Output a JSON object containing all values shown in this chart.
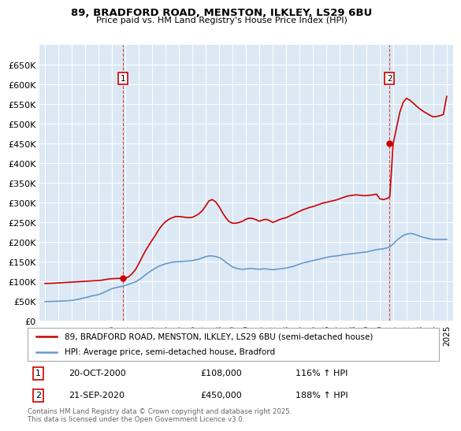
{
  "title_line1": "89, BRADFORD ROAD, MENSTON, ILKLEY, LS29 6BU",
  "title_line2": "Price paid vs. HM Land Registry's House Price Index (HPI)",
  "plot_bg_color": "#dce9f5",
  "hpi_color": "#6699cc",
  "price_color": "#cc0000",
  "ylim": [
    0,
    700000
  ],
  "yticks": [
    0,
    50000,
    100000,
    150000,
    200000,
    250000,
    300000,
    350000,
    400000,
    450000,
    500000,
    550000,
    600000,
    650000
  ],
  "ytick_labels": [
    "£0",
    "£50K",
    "£100K",
    "£150K",
    "£200K",
    "£250K",
    "£300K",
    "£350K",
    "£400K",
    "£450K",
    "£500K",
    "£550K",
    "£600K",
    "£650K"
  ],
  "xlim_start": 1994.6,
  "xlim_end": 2025.5,
  "xtick_years": [
    1995,
    1996,
    1997,
    1998,
    1999,
    2000,
    2001,
    2002,
    2003,
    2004,
    2005,
    2006,
    2007,
    2008,
    2009,
    2010,
    2011,
    2012,
    2013,
    2014,
    2015,
    2016,
    2017,
    2018,
    2019,
    2020,
    2021,
    2022,
    2023,
    2024,
    2025
  ],
  "sale1_x": 2000.8,
  "sale1_y": 108000,
  "sale1_label": "1",
  "sale2_x": 2020.72,
  "sale2_y": 450000,
  "sale2_label": "2",
  "legend_line1": "89, BRADFORD ROAD, MENSTON, ILKLEY, LS29 6BU (semi-detached house)",
  "legend_line2": "HPI: Average price, semi-detached house, Bradford",
  "annotation1_date": "20-OCT-2000",
  "annotation1_price": "£108,000",
  "annotation1_hpi": "116% ↑ HPI",
  "annotation2_date": "21-SEP-2020",
  "annotation2_price": "£450,000",
  "annotation2_hpi": "188% ↑ HPI",
  "footer": "Contains HM Land Registry data © Crown copyright and database right 2025.\nThis data is licensed under the Open Government Licence v3.0.",
  "hpi_data_x": [
    1995.0,
    1995.25,
    1995.5,
    1995.75,
    1996.0,
    1996.25,
    1996.5,
    1996.75,
    1997.0,
    1997.25,
    1997.5,
    1997.75,
    1998.0,
    1998.25,
    1998.5,
    1998.75,
    1999.0,
    1999.25,
    1999.5,
    1999.75,
    2000.0,
    2000.25,
    2000.5,
    2000.75,
    2001.0,
    2001.25,
    2001.5,
    2001.75,
    2002.0,
    2002.25,
    2002.5,
    2002.75,
    2003.0,
    2003.25,
    2003.5,
    2003.75,
    2004.0,
    2004.25,
    2004.5,
    2004.75,
    2005.0,
    2005.25,
    2005.5,
    2005.75,
    2006.0,
    2006.25,
    2006.5,
    2006.75,
    2007.0,
    2007.25,
    2007.5,
    2007.75,
    2008.0,
    2008.25,
    2008.5,
    2008.75,
    2009.0,
    2009.25,
    2009.5,
    2009.75,
    2010.0,
    2010.25,
    2010.5,
    2010.75,
    2011.0,
    2011.25,
    2011.5,
    2011.75,
    2012.0,
    2012.25,
    2012.5,
    2012.75,
    2013.0,
    2013.25,
    2013.5,
    2013.75,
    2014.0,
    2014.25,
    2014.5,
    2014.75,
    2015.0,
    2015.25,
    2015.5,
    2015.75,
    2016.0,
    2016.25,
    2016.5,
    2016.75,
    2017.0,
    2017.25,
    2017.5,
    2017.75,
    2018.0,
    2018.25,
    2018.5,
    2018.75,
    2019.0,
    2019.25,
    2019.5,
    2019.75,
    2020.0,
    2020.25,
    2020.5,
    2020.75,
    2021.0,
    2021.25,
    2021.5,
    2021.75,
    2022.0,
    2022.25,
    2022.5,
    2022.75,
    2023.0,
    2023.25,
    2023.5,
    2023.75,
    2024.0,
    2024.25,
    2024.5,
    2024.75,
    2025.0
  ],
  "hpi_data_y": [
    49000,
    49200,
    49400,
    49700,
    50000,
    50400,
    50800,
    51300,
    52000,
    53500,
    55000,
    57000,
    59000,
    61000,
    63500,
    65000,
    67000,
    70000,
    74000,
    78000,
    82000,
    84000,
    86000,
    88000,
    90000,
    93000,
    96000,
    99000,
    104000,
    110000,
    117000,
    123000,
    129000,
    134000,
    139000,
    142000,
    145000,
    147000,
    149000,
    150000,
    150500,
    151000,
    151500,
    152000,
    153000,
    155000,
    157000,
    160000,
    163000,
    165000,
    165000,
    163000,
    161000,
    156000,
    149000,
    143000,
    137000,
    134000,
    132000,
    131000,
    132000,
    133000,
    133000,
    132000,
    131000,
    132000,
    132000,
    131000,
    130000,
    131000,
    132000,
    133000,
    134000,
    136000,
    138000,
    141000,
    144000,
    147000,
    149000,
    151000,
    153000,
    155000,
    157000,
    159000,
    161000,
    163000,
    164000,
    165000,
    166000,
    168000,
    169000,
    170000,
    171000,
    172000,
    173000,
    174000,
    175000,
    177000,
    179000,
    181000,
    182000,
    183000,
    185000,
    188000,
    195000,
    204000,
    211000,
    217000,
    220000,
    222000,
    221000,
    218000,
    215000,
    212000,
    210000,
    208000,
    207000,
    207000,
    207000,
    207000,
    207000
  ],
  "price_data_x": [
    1995.0,
    1995.25,
    1995.5,
    1995.75,
    1996.0,
    1996.25,
    1996.5,
    1996.75,
    1997.0,
    1997.25,
    1997.5,
    1997.75,
    1998.0,
    1998.25,
    1998.5,
    1998.75,
    1999.0,
    1999.25,
    1999.5,
    1999.75,
    2000.0,
    2000.25,
    2000.5,
    2000.75,
    2001.0,
    2001.25,
    2001.5,
    2001.75,
    2002.0,
    2002.25,
    2002.5,
    2002.75,
    2003.0,
    2003.25,
    2003.5,
    2003.75,
    2004.0,
    2004.25,
    2004.5,
    2004.75,
    2005.0,
    2005.25,
    2005.5,
    2005.75,
    2006.0,
    2006.25,
    2006.5,
    2006.75,
    2007.0,
    2007.25,
    2007.5,
    2007.75,
    2008.0,
    2008.25,
    2008.5,
    2008.75,
    2009.0,
    2009.25,
    2009.5,
    2009.75,
    2010.0,
    2010.25,
    2010.5,
    2010.75,
    2011.0,
    2011.25,
    2011.5,
    2011.75,
    2012.0,
    2012.25,
    2012.5,
    2012.75,
    2013.0,
    2013.25,
    2013.5,
    2013.75,
    2014.0,
    2014.25,
    2014.5,
    2014.75,
    2015.0,
    2015.25,
    2015.5,
    2015.75,
    2016.0,
    2016.25,
    2016.5,
    2016.75,
    2017.0,
    2017.25,
    2017.5,
    2017.75,
    2018.0,
    2018.25,
    2018.5,
    2018.75,
    2019.0,
    2019.25,
    2019.5,
    2019.75,
    2020.0,
    2020.25,
    2020.5,
    2020.75,
    2021.0,
    2021.25,
    2021.5,
    2021.75,
    2022.0,
    2022.25,
    2022.5,
    2022.75,
    2023.0,
    2023.25,
    2023.5,
    2023.75,
    2024.0,
    2024.25,
    2024.5,
    2024.75,
    2025.0
  ],
  "price_data_y": [
    95000,
    95200,
    95500,
    96000,
    96500,
    97000,
    97500,
    98000,
    98500,
    99000,
    99500,
    100000,
    100500,
    101000,
    101500,
    102000,
    102500,
    103500,
    105000,
    106500,
    107000,
    107500,
    108000,
    108000,
    108500,
    112000,
    120000,
    130000,
    145000,
    162000,
    178000,
    192000,
    205000,
    218000,
    232000,
    243000,
    252000,
    258000,
    262000,
    265000,
    265000,
    264000,
    263000,
    262000,
    263000,
    267000,
    272000,
    280000,
    292000,
    305000,
    308000,
    302000,
    290000,
    275000,
    262000,
    252000,
    248000,
    248000,
    250000,
    253000,
    258000,
    261000,
    260000,
    257000,
    253000,
    256000,
    258000,
    255000,
    250000,
    253000,
    257000,
    260000,
    262000,
    266000,
    270000,
    274000,
    278000,
    282000,
    285000,
    288000,
    290000,
    293000,
    296000,
    299000,
    301000,
    303000,
    305000,
    307000,
    310000,
    313000,
    316000,
    318000,
    319000,
    320000,
    319000,
    318000,
    318000,
    319000,
    320000,
    322000,
    310000,
    308000,
    310000,
    315000,
    450000,
    490000,
    530000,
    555000,
    565000,
    560000,
    553000,
    545000,
    538000,
    532000,
    527000,
    522000,
    518000,
    519000,
    521000,
    524000,
    570000
  ]
}
